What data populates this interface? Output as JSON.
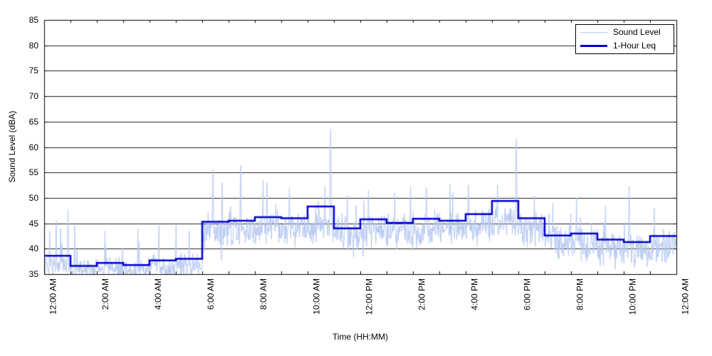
{
  "figure": {
    "background": "#ffffff",
    "axis_color": "#000000",
    "grid_color": "#222222",
    "text_color": "#000000"
  },
  "chart_data": {
    "type": "line",
    "title": "",
    "xlabel": "Time (HH:MM)",
    "ylabel": "Sound Level (dBA)",
    "ylim": [
      35,
      85
    ],
    "xlim_hours": [
      0,
      24
    ],
    "grid": "horizontal-only",
    "y_ticks": [
      35,
      40,
      45,
      50,
      55,
      60,
      65,
      70,
      75,
      80,
      85
    ],
    "x_minor_tick_every_hours": 1,
    "x_tick_labels": [
      {
        "hour": 0,
        "label": "12:00 AM"
      },
      {
        "hour": 2,
        "label": "2:00 AM"
      },
      {
        "hour": 4,
        "label": "4:00 AM"
      },
      {
        "hour": 6,
        "label": "6:00 AM"
      },
      {
        "hour": 8,
        "label": "8:00 AM"
      },
      {
        "hour": 10,
        "label": "10:00 AM"
      },
      {
        "hour": 12,
        "label": "12:00 PM"
      },
      {
        "hour": 14,
        "label": "2:00 PM"
      },
      {
        "hour": 16,
        "label": "4:00 PM"
      },
      {
        "hour": 18,
        "label": "6:00 PM"
      },
      {
        "hour": 20,
        "label": "8:00 PM"
      },
      {
        "hour": 22,
        "label": "10:00 PM"
      },
      {
        "hour": 24,
        "label": "12:00 AM"
      }
    ],
    "legend": {
      "position": "top-right",
      "entries": [
        {
          "name": "Sound Level",
          "color": "#b7c9f2",
          "line_width": 1
        },
        {
          "name": "1-Hour Leq",
          "color": "#0000cd",
          "line_width": 3
        }
      ]
    },
    "series": [
      {
        "name": "1-Hour Leq",
        "type": "hourly-step",
        "color": "#0000cd",
        "line_width": 2.5,
        "hours": [
          0,
          1,
          2,
          3,
          4,
          5,
          6,
          7,
          8,
          9,
          10,
          11,
          12,
          13,
          14,
          15,
          16,
          17,
          18,
          19,
          20,
          21,
          22,
          23
        ],
        "leq_dba": [
          38.6,
          36.6,
          37.2,
          36.8,
          37.7,
          38.0,
          45.3,
          45.5,
          46.2,
          46.0,
          48.3,
          44.0,
          45.8,
          45.1,
          45.9,
          45.5,
          46.8,
          49.4,
          46.0,
          42.6,
          43.0,
          41.8,
          41.3,
          42.5
        ]
      },
      {
        "name": "Sound Level",
        "type": "noisy-minute-samples",
        "color": "#b7c9f2",
        "line_width": 1,
        "samples_per_hour": 60,
        "clip_min_dba": 35,
        "hourly_median_dba": [
          36.8,
          36.0,
          36.2,
          36.1,
          36.6,
          36.8,
          43.5,
          43.8,
          44.2,
          44.0,
          44.5,
          42.8,
          43.8,
          43.3,
          43.8,
          43.6,
          44.5,
          45.3,
          44.0,
          41.3,
          41.2,
          40.0,
          39.6,
          40.5
        ],
        "hourly_spread_dba": [
          1.2,
          1.1,
          1.1,
          1.1,
          1.2,
          1.3,
          1.9,
          1.9,
          1.9,
          1.9,
          1.9,
          1.9,
          1.9,
          1.9,
          1.9,
          1.9,
          1.9,
          1.9,
          1.9,
          1.9,
          1.8,
          1.8,
          1.8,
          1.8
        ],
        "notable_spikes_hour_dba": [
          [
            0.2,
            43.5
          ],
          [
            0.45,
            45.5
          ],
          [
            0.62,
            44.0
          ],
          [
            0.9,
            47.8
          ],
          [
            1.15,
            44.5
          ],
          [
            2.3,
            43.5
          ],
          [
            3.55,
            44.0
          ],
          [
            4.35,
            44.5
          ],
          [
            5.0,
            44.6
          ],
          [
            5.5,
            43.5
          ],
          [
            6.4,
            55.5
          ],
          [
            6.75,
            53.0
          ],
          [
            7.45,
            56.4
          ],
          [
            8.3,
            53.5
          ],
          [
            8.45,
            53.0
          ],
          [
            9.3,
            52.0
          ],
          [
            10.65,
            52.3
          ],
          [
            10.87,
            63.5
          ],
          [
            11.5,
            50.5
          ],
          [
            12.3,
            51.5
          ],
          [
            13.3,
            51.0
          ],
          [
            13.9,
            52.5
          ],
          [
            14.5,
            52.0
          ],
          [
            15.5,
            51.0
          ],
          [
            16.1,
            52.5
          ],
          [
            17.2,
            52.5
          ],
          [
            17.92,
            61.5
          ],
          [
            18.6,
            50.5
          ],
          [
            19.3,
            49.0
          ],
          [
            20.2,
            50.0
          ],
          [
            21.3,
            48.5
          ],
          [
            22.2,
            52.3
          ],
          [
            23.15,
            48.0
          ]
        ],
        "random_seed": 7
      }
    ]
  }
}
